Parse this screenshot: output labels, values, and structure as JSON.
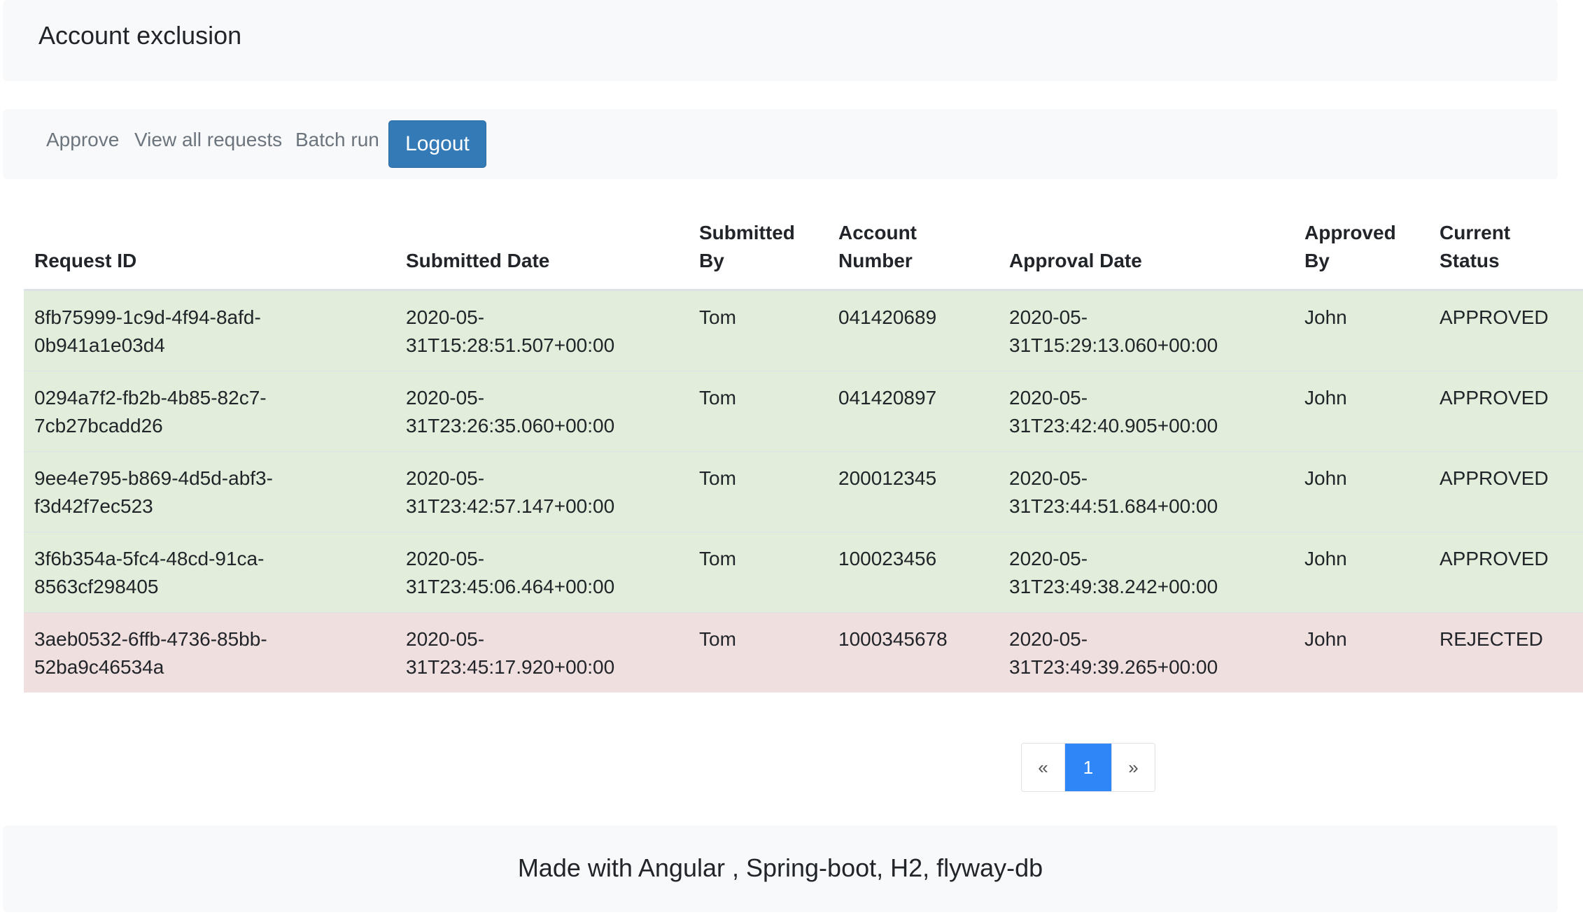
{
  "header": {
    "title": "Account exclusion"
  },
  "nav": {
    "approve": "Approve",
    "view_all": "View all requests",
    "batch_run": "Batch run",
    "logout": "Logout"
  },
  "table": {
    "columns": [
      "Request ID",
      "Submitted Date",
      "Submitted By",
      "Account Number",
      "Approval Date",
      "Approved By",
      "Current Status"
    ],
    "rows": [
      {
        "request_id": "8fb75999-1c9d-4f94-8afd-0b941a1e03d4",
        "submitted_date": "2020-05-31T15:28:51.507+00:00",
        "submitted_by": "Tom",
        "account_number": "041420689",
        "approval_date": "2020-05-31T15:29:13.060+00:00",
        "approved_by": "John",
        "status": "APPROVED"
      },
      {
        "request_id": "0294a7f2-fb2b-4b85-82c7-7cb27bcadd26",
        "submitted_date": "2020-05-31T23:26:35.060+00:00",
        "submitted_by": "Tom",
        "account_number": "041420897",
        "approval_date": "2020-05-31T23:42:40.905+00:00",
        "approved_by": "John",
        "status": "APPROVED"
      },
      {
        "request_id": "9ee4e795-b869-4d5d-abf3-f3d42f7ec523",
        "submitted_date": "2020-05-31T23:42:57.147+00:00",
        "submitted_by": "Tom",
        "account_number": "200012345",
        "approval_date": "2020-05-31T23:44:51.684+00:00",
        "approved_by": "John",
        "status": "APPROVED"
      },
      {
        "request_id": "3f6b354a-5fc4-48cd-91ca-8563cf298405",
        "submitted_date": "2020-05-31T23:45:06.464+00:00",
        "submitted_by": "Tom",
        "account_number": "100023456",
        "approval_date": "2020-05-31T23:49:38.242+00:00",
        "approved_by": "John",
        "status": "APPROVED"
      },
      {
        "request_id": "3aeb0532-6ffb-4736-85bb-52ba9c46534a",
        "submitted_date": "2020-05-31T23:45:17.920+00:00",
        "submitted_by": "Tom",
        "account_number": "1000345678",
        "approval_date": "2020-05-31T23:49:39.265+00:00",
        "approved_by": "John",
        "status": "REJECTED"
      }
    ]
  },
  "pagination": {
    "prev": "«",
    "current": "1",
    "next": "»"
  },
  "footer": {
    "text": "Made with Angular , Spring-boot, H2, flyway-db"
  },
  "colors": {
    "approved_row": "#e2eedb",
    "rejected_row": "#f0dfdf",
    "logout_button": "#337ab7",
    "current_page": "#2f86f6"
  }
}
